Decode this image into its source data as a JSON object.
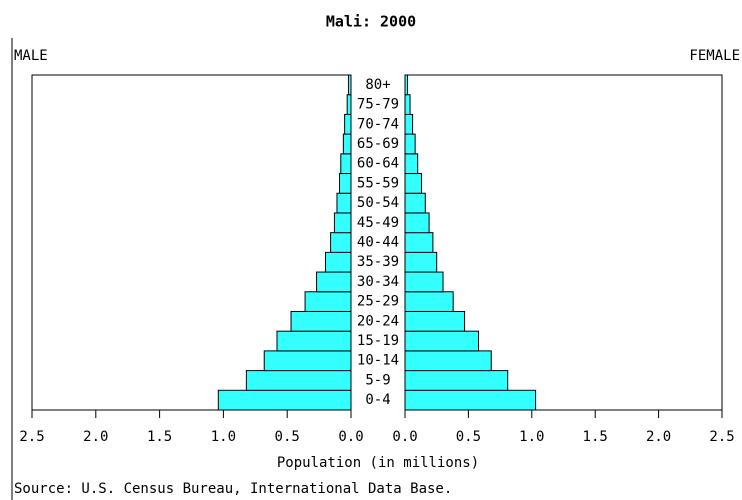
{
  "chart_data": {
    "type": "pyramid",
    "title": "Mali: 2000",
    "xlabel": "Population (in millions)",
    "source": "Source: U.S. Census Bureau, International Data Base.",
    "categories": [
      "0-4",
      "5-9",
      "10-14",
      "15-19",
      "20-24",
      "25-29",
      "30-34",
      "35-39",
      "40-44",
      "45-49",
      "50-54",
      "55-59",
      "60-64",
      "65-69",
      "70-74",
      "75-79",
      "80+"
    ],
    "series": [
      {
        "name": "MALE",
        "color": "#33ffff",
        "values": [
          1.04,
          0.82,
          0.68,
          0.58,
          0.47,
          0.36,
          0.27,
          0.2,
          0.16,
          0.13,
          0.11,
          0.09,
          0.08,
          0.06,
          0.05,
          0.03,
          0.02
        ]
      },
      {
        "name": "FEMALE",
        "color": "#33ffff",
        "values": [
          1.03,
          0.81,
          0.68,
          0.58,
          0.47,
          0.38,
          0.3,
          0.25,
          0.22,
          0.19,
          0.16,
          0.13,
          0.1,
          0.08,
          0.06,
          0.04,
          0.02
        ]
      }
    ],
    "xlim": [
      0,
      2.5
    ],
    "xticks": [
      2.5,
      {
        "value": 2,
        "label": "2.0"
      },
      1.5,
      {
        "value": 1,
        "label": "1.0"
      },
      0.5,
      {
        "value": 0,
        "label": "0.0"
      }
    ]
  }
}
